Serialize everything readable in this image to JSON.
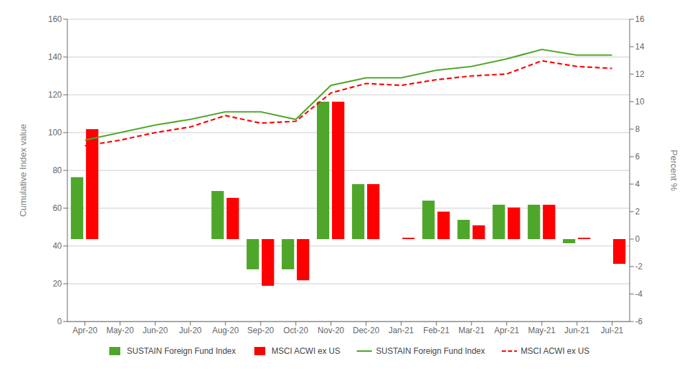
{
  "chart_data": {
    "type": "combo",
    "categories": [
      "Apr-20",
      "May-20",
      "Jun-20",
      "Jul-20",
      "Aug-20",
      "Sep-20",
      "Oct-20",
      "Nov-20",
      "Dec-20",
      "Jan-21",
      "Feb-21",
      "Mar-21",
      "Apr-21",
      "May-21",
      "Jun-21",
      "Jul-21"
    ],
    "series": [
      {
        "name": "SUSTAIN Foreign Fund Index",
        "type": "bar",
        "axis": "y2",
        "color": "#4EA72A",
        "values": [
          4.5,
          0.0,
          0.0,
          0.0,
          3.5,
          -2.2,
          -2.2,
          10.0,
          4.0,
          0.0,
          2.8,
          1.4,
          2.5,
          2.5,
          -0.3,
          0.0
        ]
      },
      {
        "name": "MSCI ACWI ex US",
        "type": "bar",
        "axis": "y2",
        "color": "#FF0000",
        "values": [
          8.0,
          0.0,
          0.0,
          0.0,
          3.0,
          -3.4,
          -3.0,
          10.0,
          4.0,
          0.1,
          2.0,
          1.0,
          2.3,
          2.5,
          0.1,
          -1.8
        ]
      },
      {
        "name": "SUSTAIN Foreign Fund Index",
        "type": "line",
        "axis": "y",
        "color": "#4EA72A",
        "line_style": "solid",
        "values": [
          96,
          100,
          104,
          107,
          111,
          111,
          107,
          125,
          129,
          129,
          133,
          135,
          139,
          144,
          141,
          141
        ]
      },
      {
        "name": "MSCI ACWI ex US",
        "type": "line",
        "axis": "y",
        "color": "#FF0000",
        "line_style": "dashed",
        "values": [
          93,
          96,
          100,
          103,
          109,
          105,
          106,
          121,
          126,
          125,
          128,
          130,
          131,
          138,
          135,
          134
        ]
      }
    ],
    "ylabel": "Cumulative Index value",
    "y2label": "Percent %",
    "ylim": [
      0,
      160
    ],
    "yticks": [
      0,
      20,
      40,
      60,
      80,
      100,
      120,
      140,
      160
    ],
    "y2lim": [
      -6,
      16
    ],
    "y2ticks": [
      -6,
      -4,
      -2,
      0,
      2,
      4,
      6,
      8,
      10,
      12,
      14,
      16
    ],
    "grid": true,
    "legend": "bottom"
  }
}
